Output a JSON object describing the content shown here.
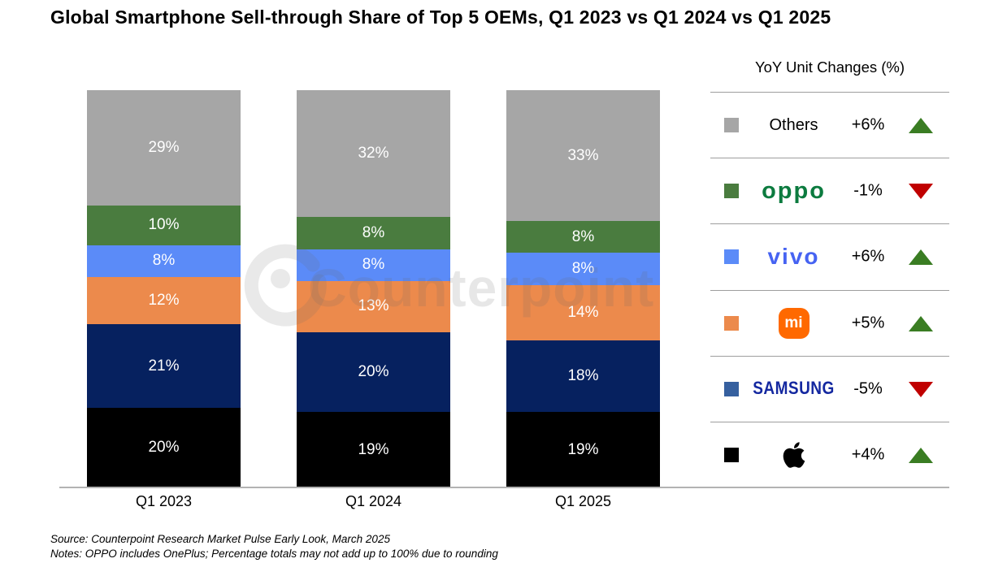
{
  "title": "Global Smartphone Sell-through Share of Top 5 OEMs, Q1 2023 vs Q1 2024 vs Q1 2025",
  "watermark": {
    "text": "Counterpoint"
  },
  "chart_data": {
    "type": "bar",
    "subtype": "stacked-100",
    "categories": [
      "Q1 2023",
      "Q1 2024",
      "Q1 2025"
    ],
    "series": [
      {
        "name": "Apple",
        "color": "#000000",
        "values": [
          20,
          19,
          19
        ]
      },
      {
        "name": "Samsung",
        "color": "#06215f",
        "values": [
          21,
          20,
          18
        ]
      },
      {
        "name": "Xiaomi",
        "color": "#ec8a4c",
        "values": [
          12,
          13,
          14
        ]
      },
      {
        "name": "vivo",
        "color": "#5b8bf8",
        "values": [
          8,
          8,
          8
        ]
      },
      {
        "name": "OPPO",
        "color": "#4a7c3f",
        "values": [
          10,
          8,
          8
        ]
      },
      {
        "name": "Others",
        "color": "#a6a6a6",
        "values": [
          29,
          32,
          33
        ]
      }
    ],
    "value_suffix": "%",
    "ylim": [
      0,
      100
    ],
    "grid": false,
    "legend_position": "right"
  },
  "legend": {
    "title": "YoY Unit Changes (%)",
    "rows": [
      {
        "brand": "others",
        "label": "Others",
        "swatch": "#a6a6a6",
        "change": "+6%",
        "direction": "up"
      },
      {
        "brand": "oppo",
        "label": "oppo",
        "swatch": "#4a7c3f",
        "change": "-1%",
        "direction": "down"
      },
      {
        "brand": "vivo",
        "label": "vivo",
        "swatch": "#5b8bf8",
        "change": "+6%",
        "direction": "up"
      },
      {
        "brand": "xiaomi",
        "label": "mi",
        "swatch": "#ec8a4c",
        "change": "+5%",
        "direction": "up"
      },
      {
        "brand": "samsung",
        "label": "SAMSUNG",
        "swatch": "#36609f",
        "change": "-5%",
        "direction": "down"
      },
      {
        "brand": "apple",
        "label": "",
        "swatch": "#000000",
        "change": "+4%",
        "direction": "up"
      }
    ]
  },
  "footer": {
    "source": "Source: Counterpoint Research Market Pulse Early Look, March 2025",
    "notes": "Notes: OPPO includes OnePlus; Percentage totals may not add up to 100% due to rounding"
  },
  "colors": {
    "triangle_up": "#3a7d23",
    "triangle_down": "#c00000",
    "axis_line": "#b3b3b3",
    "legend_divider": "#9e9e9e"
  }
}
